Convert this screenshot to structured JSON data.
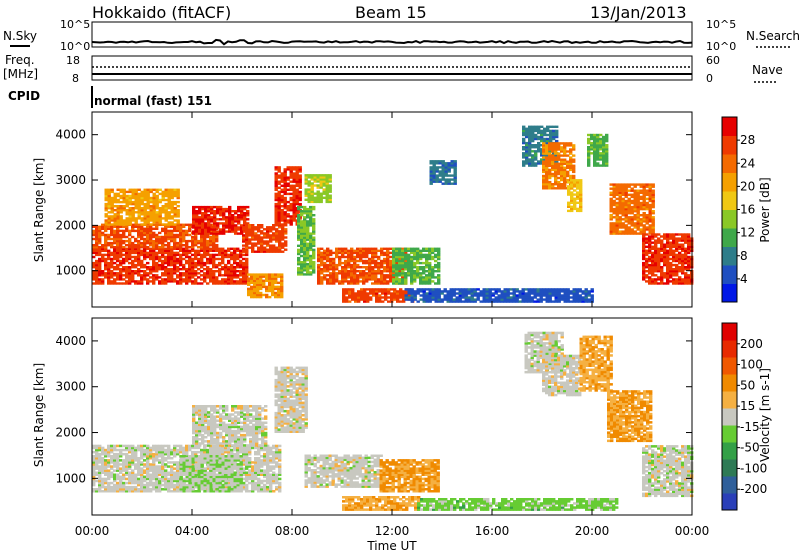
{
  "header": {
    "station": "Hokkaido (fitACF)",
    "beam": "Beam 15",
    "date": "13/Jan/2013"
  },
  "strip": {
    "nsky_label": "N.Sky",
    "nsearch_label": "N.Search",
    "noise_ticks_left": [
      "10^5",
      "10^0"
    ],
    "noise_ticks_right": [
      "10^5",
      "10^0"
    ],
    "freq_label_1": "Freq.",
    "freq_label_2": "[MHz]",
    "freq_ticks": [
      "18",
      "8"
    ],
    "nave_label": "Nave",
    "nave_ticks": [
      "60",
      "0"
    ],
    "cpid_label": "CPID",
    "cpid_value": "normal (fast) 151"
  },
  "colors": {
    "power_scale": [
      "#0018e6",
      "#1f4fc0",
      "#2e7d8a",
      "#3fa84a",
      "#8ac826",
      "#f0c814",
      "#f5a000",
      "#f46a00",
      "#ef3a00",
      "#e60000"
    ],
    "velocity_scale": [
      "#2a3fb8",
      "#2f5f9a",
      "#2e7a55",
      "#33a047",
      "#66cc33",
      "#c8c8c0",
      "#f5b042",
      "#f08a00",
      "#f05800",
      "#e82a00",
      "#e00000"
    ]
  },
  "chart_data": [
    {
      "type": "heatmap",
      "title": "Power",
      "xlabel": "Time UT",
      "ylabel": "Slant Range [km]",
      "x_ticks": [
        "00:00",
        "04:00",
        "08:00",
        "12:00",
        "16:00",
        "20:00",
        "00:00"
      ],
      "xlim": [
        0,
        24
      ],
      "ylim": [
        200,
        4500
      ],
      "y_ticks": [
        1000,
        2000,
        3000,
        4000
      ],
      "colorbar": {
        "label": "Power [dB]",
        "range": [
          0,
          32
        ],
        "ticks": [
          4,
          8,
          12,
          16,
          20,
          24,
          28
        ]
      },
      "regions": [
        {
          "t0": 0.0,
          "t1": 6.2,
          "r0": 700,
          "r1": 1500,
          "value": 28
        },
        {
          "t0": 0.0,
          "t1": 5.0,
          "r0": 1500,
          "r1": 2000,
          "value": 26
        },
        {
          "t0": 4.0,
          "t1": 6.2,
          "r0": 1800,
          "r1": 2400,
          "value": 29
        },
        {
          "t0": 0.5,
          "t1": 3.5,
          "r0": 2000,
          "r1": 2800,
          "value": 21
        },
        {
          "t0": 6.0,
          "t1": 7.8,
          "r0": 1400,
          "r1": 2000,
          "value": 27
        },
        {
          "t0": 6.2,
          "t1": 7.6,
          "r0": 400,
          "r1": 900,
          "value": 22
        },
        {
          "t0": 7.3,
          "t1": 8.3,
          "r0": 2000,
          "r1": 3300,
          "value": 28
        },
        {
          "t0": 8.2,
          "t1": 8.9,
          "r0": 900,
          "r1": 2400,
          "value": 13
        },
        {
          "t0": 8.5,
          "t1": 9.5,
          "r0": 2500,
          "r1": 3100,
          "value": 15
        },
        {
          "t0": 9.0,
          "t1": 12.5,
          "r0": 700,
          "r1": 1500,
          "value": 26
        },
        {
          "t0": 10.0,
          "t1": 12.8,
          "r0": 300,
          "r1": 600,
          "value": 27
        },
        {
          "t0": 12.0,
          "t1": 13.8,
          "r0": 700,
          "r1": 1500,
          "value": 12
        },
        {
          "t0": 12.5,
          "t1": 20.0,
          "r0": 300,
          "r1": 600,
          "value": 5
        },
        {
          "t0": 13.5,
          "t1": 14.5,
          "r0": 2900,
          "r1": 3400,
          "value": 7
        },
        {
          "t0": 17.2,
          "t1": 18.6,
          "r0": 3300,
          "r1": 4200,
          "value": 8
        },
        {
          "t0": 18.0,
          "t1": 19.3,
          "r0": 2800,
          "r1": 3800,
          "value": 23
        },
        {
          "t0": 19.0,
          "t1": 19.6,
          "r0": 2300,
          "r1": 3000,
          "value": 18
        },
        {
          "t0": 19.8,
          "t1": 20.6,
          "r0": 3300,
          "r1": 4000,
          "value": 12
        },
        {
          "t0": 20.7,
          "t1": 22.5,
          "r0": 1800,
          "r1": 2900,
          "value": 24
        },
        {
          "t0": 22.0,
          "t1": 24.0,
          "r0": 700,
          "r1": 1800,
          "value": 28
        }
      ]
    },
    {
      "type": "heatmap",
      "title": "Velocity",
      "xlabel": "Time UT",
      "ylabel": "Slant Range [km]",
      "x_ticks": [
        "00:00",
        "04:00",
        "08:00",
        "12:00",
        "16:00",
        "20:00",
        "00:00"
      ],
      "xlim": [
        0,
        24
      ],
      "ylim": [
        200,
        4500
      ],
      "y_ticks": [
        1000,
        2000,
        3000,
        4000
      ],
      "colorbar": {
        "label": "Velocity [m s-1]",
        "range": [
          -250,
          250
        ],
        "ticks": [
          200,
          100,
          50,
          15,
          -15,
          -50,
          -100,
          -200
        ]
      },
      "regions": [
        {
          "t0": 0.0,
          "t1": 7.5,
          "r0": 700,
          "r1": 1700,
          "value": 0
        },
        {
          "t0": 4.0,
          "t1": 7.0,
          "r0": 1700,
          "r1": 2600,
          "value": 0
        },
        {
          "t0": 7.3,
          "t1": 8.5,
          "r0": 2000,
          "r1": 3400,
          "value": 5
        },
        {
          "t0": 3.5,
          "t1": 6.0,
          "r0": 700,
          "r1": 1500,
          "value": -20
        },
        {
          "t0": 8.5,
          "t1": 11.5,
          "r0": 800,
          "r1": 1500,
          "value": 0
        },
        {
          "t0": 11.5,
          "t1": 13.8,
          "r0": 700,
          "r1": 1400,
          "value": 70
        },
        {
          "t0": 10.0,
          "t1": 13.0,
          "r0": 300,
          "r1": 600,
          "value": 60
        },
        {
          "t0": 13.0,
          "t1": 21.0,
          "r0": 300,
          "r1": 550,
          "value": -40
        },
        {
          "t0": 17.3,
          "t1": 18.8,
          "r0": 3300,
          "r1": 4200,
          "value": 0
        },
        {
          "t0": 18.0,
          "t1": 19.5,
          "r0": 2800,
          "r1": 3700,
          "value": 5
        },
        {
          "t0": 19.5,
          "t1": 20.8,
          "r0": 2900,
          "r1": 4100,
          "value": 60
        },
        {
          "t0": 20.6,
          "t1": 22.3,
          "r0": 1800,
          "r1": 2900,
          "value": 70
        },
        {
          "t0": 22.0,
          "t1": 24.0,
          "r0": 600,
          "r1": 1700,
          "value": 0
        }
      ]
    }
  ]
}
